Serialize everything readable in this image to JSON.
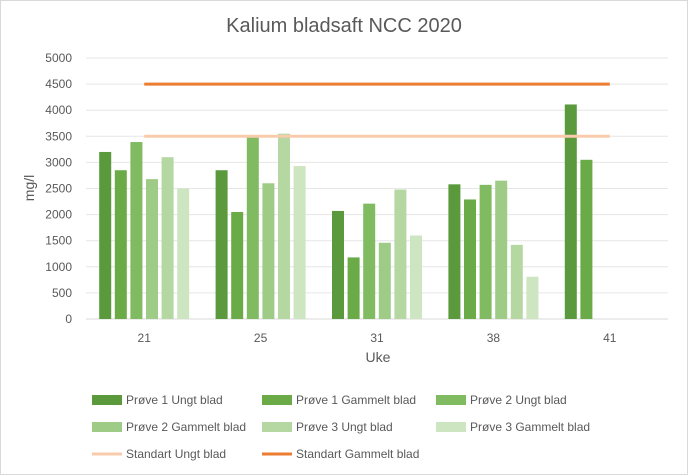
{
  "chart_data": {
    "type": "bar",
    "title": "Kalium bladsaft NCC 2020",
    "xlabel": "Uke",
    "ylabel": "mg/l",
    "categories": [
      "21",
      "25",
      "31",
      "38",
      "41"
    ],
    "ylim": [
      0,
      5000
    ],
    "yticks": [
      0,
      500,
      1000,
      1500,
      2000,
      2500,
      3000,
      3500,
      4000,
      4500,
      5000
    ],
    "grid": "horizontal",
    "legend_position": "bottom",
    "series": [
      {
        "name": "Prøve 1 Ungt blad",
        "color": "#5a9a3c",
        "values": [
          3200,
          2850,
          2070,
          2580,
          4110
        ]
      },
      {
        "name": "Prøve 1 Gammelt blad",
        "color": "#6aab47",
        "values": [
          2850,
          2050,
          1180,
          2290,
          3050
        ]
      },
      {
        "name": "Prøve 2 Ungt blad",
        "color": "#80bb62",
        "values": [
          3390,
          3490,
          2210,
          2570,
          null
        ]
      },
      {
        "name": "Prøve 2 Gammelt blad",
        "color": "#9ecb86",
        "values": [
          2680,
          2600,
          1460,
          2650,
          null
        ]
      },
      {
        "name": "Prøve 3 Ungt blad",
        "color": "#b5d8a3",
        "values": [
          3100,
          3550,
          2480,
          1420,
          null
        ]
      },
      {
        "name": "Prøve 3 Gammelt blad",
        "color": "#cde5c1",
        "values": [
          2500,
          2930,
          1600,
          810,
          null
        ]
      }
    ],
    "reference_lines": [
      {
        "name": "Standart Ungt blad",
        "color": "#f8cbad",
        "value": 3500
      },
      {
        "name": "Standart Gammelt blad",
        "color": "#ed7d31",
        "value": 4500
      }
    ]
  }
}
